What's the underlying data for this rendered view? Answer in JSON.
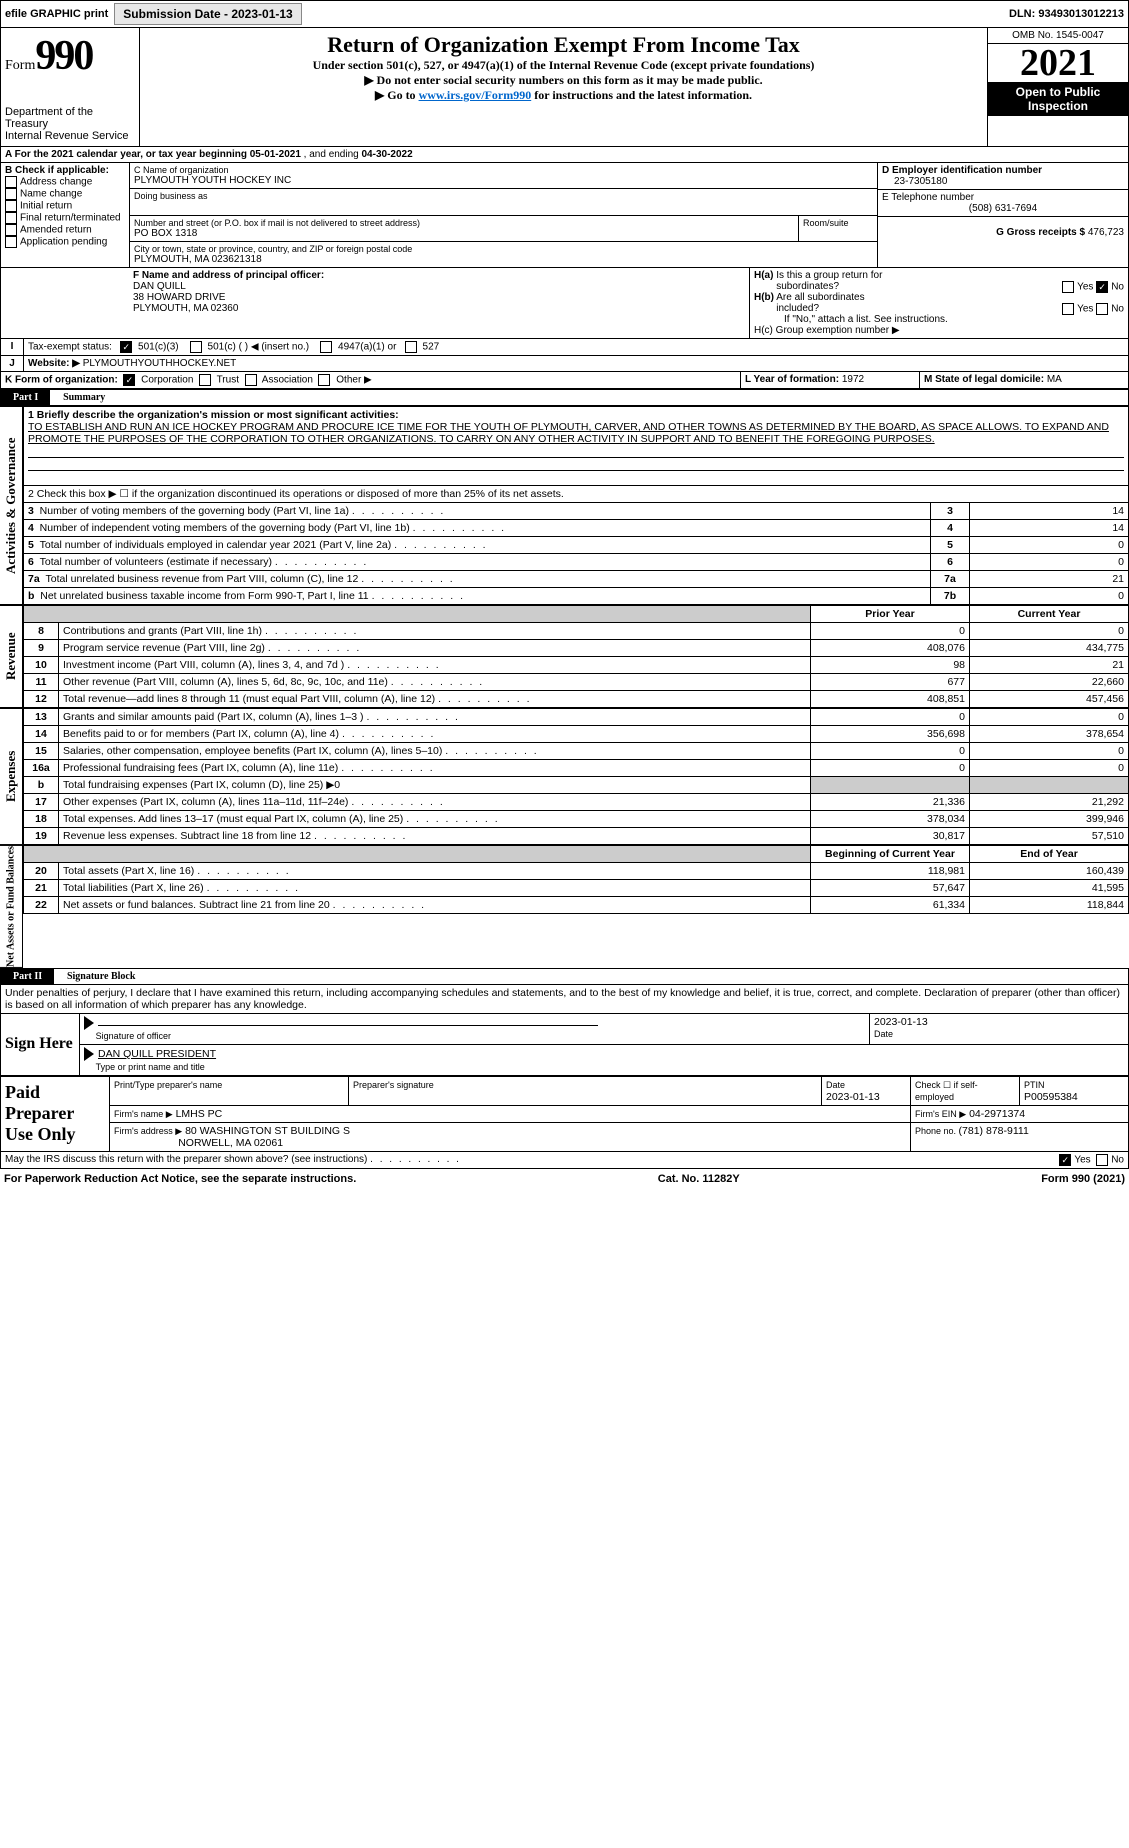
{
  "topbar": {
    "efile": "efile GRAPHIC print",
    "subdate_lbl": "Submission Date - ",
    "subdate": "2023-01-13",
    "dln_lbl": "DLN: ",
    "dln": "93493013012213"
  },
  "header": {
    "form": "Form",
    "form_num": "990",
    "omb": "OMB No. 1545-0047",
    "year": "2021",
    "title": "Return of Organization Exempt From Income Tax",
    "sub1": "Under section 501(c), 527, or 4947(a)(1) of the Internal Revenue Code (except private foundations)",
    "sub2": "▶ Do not enter social security numbers on this form as it may be made public.",
    "sub3_pre": "▶ Go to ",
    "sub3_link": "www.irs.gov/Form990",
    "sub3_post": " for instructions and the latest information.",
    "dept": "Department of the Treasury",
    "irs": "Internal Revenue Service",
    "open": "Open to Public Inspection"
  },
  "a": {
    "line": "A For the 2021 calendar year, or tax year beginning ",
    "beg": "05-01-2021",
    "mid": " , and ending ",
    "end": "04-30-2022"
  },
  "b": {
    "hdr": "B Check if applicable:",
    "items": [
      "Address change",
      "Name change",
      "Initial return",
      "Final return/terminated",
      "Amended return",
      "Application pending"
    ]
  },
  "c": {
    "lbl": "C Name of organization",
    "name": "PLYMOUTH YOUTH HOCKEY INC",
    "dba_lbl": "Doing business as",
    "dba": "",
    "addr_lbl": "Number and street (or P.O. box if mail is not delivered to street address)",
    "room_lbl": "Room/suite",
    "addr": "PO BOX 1318",
    "city_lbl": "City or town, state or province, country, and ZIP or foreign postal code",
    "city": "PLYMOUTH, MA  023621318"
  },
  "d": {
    "lbl": "D Employer identification number",
    "val": "23-7305180"
  },
  "e": {
    "lbl": "E Telephone number",
    "val": "(508) 631-7694"
  },
  "g": {
    "lbl": "G Gross receipts $ ",
    "val": "476,723"
  },
  "f": {
    "lbl": "F Name and address of principal officer:",
    "l1": "DAN QUILL",
    "l2": "38 HOWARD DRIVE",
    "l3": "PLYMOUTH, MA  02360"
  },
  "h": {
    "a_lbl": "H(a)  Is this a group return for subordinates?",
    "b_lbl": "H(b)  Are all subordinates included?",
    "note": "If \"No,\" attach a list. See instructions.",
    "c_lbl": "H(c)  Group exemption number ▶"
  },
  "i": {
    "lbl": "Tax-exempt status:",
    "o1": "501(c)(3)",
    "o2": "501(c) (   ) ◀ (insert no.)",
    "o3": "4947(a)(1) or",
    "o4": "527"
  },
  "j": {
    "lbl": "Website: ▶",
    "val": "PLYMOUTHYOUTHHOCKEY.NET"
  },
  "k": {
    "lbl": "K Form of organization:",
    "o1": "Corporation",
    "o2": "Trust",
    "o3": "Association",
    "o4": "Other ▶"
  },
  "l": {
    "lbl": "L Year of formation: ",
    "val": "1972"
  },
  "m": {
    "lbl": "M State of legal domicile: ",
    "val": "MA"
  },
  "p1": {
    "tag": "Part I",
    "title": "Summary",
    "side_a": "Activities & Governance",
    "side_r": "Revenue",
    "side_e": "Expenses",
    "side_n": "Net Assets or Fund Balances",
    "q1": "1  Briefly describe the organization's mission or most significant activities:",
    "mission": "TO ESTABLISH AND RUN AN ICE HOCKEY PROGRAM AND PROCURE ICE TIME FOR THE YOUTH OF PLYMOUTH, CARVER, AND OTHER TOWNS AS DETERMINED BY THE BOARD, AS SPACE ALLOWS. TO EXPAND AND PROMOTE THE PURPOSES OF THE CORPORATION TO OTHER ORGANIZATIONS. TO CARRY ON ANY OTHER ACTIVITY IN SUPPORT AND TO BENEFIT THE FOREGOING PURPOSES.",
    "q2": "2  Check this box ▶ ☐ if the organization discontinued its operations or disposed of more than 25% of its net assets.",
    "rows_ag": [
      {
        "n": "3",
        "t": "Number of voting members of the governing body (Part VI, line 1a)",
        "box": "3",
        "v": "14"
      },
      {
        "n": "4",
        "t": "Number of independent voting members of the governing body (Part VI, line 1b)",
        "box": "4",
        "v": "14"
      },
      {
        "n": "5",
        "t": "Total number of individuals employed in calendar year 2021 (Part V, line 2a)",
        "box": "5",
        "v": "0"
      },
      {
        "n": "6",
        "t": "Total number of volunteers (estimate if necessary)",
        "box": "6",
        "v": "0"
      },
      {
        "n": "7a",
        "t": "Total unrelated business revenue from Part VIII, column (C), line 12",
        "box": "7a",
        "v": "21"
      },
      {
        "n": "b",
        "t": "Net unrelated business taxable income from Form 990-T, Part I, line 11",
        "box": "7b",
        "v": "0"
      }
    ],
    "col_py": "Prior Year",
    "col_cy": "Current Year",
    "rows_rev": [
      {
        "n": "8",
        "t": "Contributions and grants (Part VIII, line 1h)",
        "py": "0",
        "cy": "0"
      },
      {
        "n": "9",
        "t": "Program service revenue (Part VIII, line 2g)",
        "py": "408,076",
        "cy": "434,775"
      },
      {
        "n": "10",
        "t": "Investment income (Part VIII, column (A), lines 3, 4, and 7d )",
        "py": "98",
        "cy": "21"
      },
      {
        "n": "11",
        "t": "Other revenue (Part VIII, column (A), lines 5, 6d, 8c, 9c, 10c, and 11e)",
        "py": "677",
        "cy": "22,660"
      },
      {
        "n": "12",
        "t": "Total revenue—add lines 8 through 11 (must equal Part VIII, column (A), line 12)",
        "py": "408,851",
        "cy": "457,456"
      }
    ],
    "rows_exp": [
      {
        "n": "13",
        "t": "Grants and similar amounts paid (Part IX, column (A), lines 1–3 )",
        "py": "0",
        "cy": "0"
      },
      {
        "n": "14",
        "t": "Benefits paid to or for members (Part IX, column (A), line 4)",
        "py": "356,698",
        "cy": "378,654"
      },
      {
        "n": "15",
        "t": "Salaries, other compensation, employee benefits (Part IX, column (A), lines 5–10)",
        "py": "0",
        "cy": "0"
      },
      {
        "n": "16a",
        "t": "Professional fundraising fees (Part IX, column (A), line 11e)",
        "py": "0",
        "cy": "0"
      },
      {
        "n": "b",
        "t": "Total fundraising expenses (Part IX, column (D), line 25) ▶0",
        "py": "",
        "cy": ""
      },
      {
        "n": "17",
        "t": "Other expenses (Part IX, column (A), lines 11a–11d, 11f–24e)",
        "py": "21,336",
        "cy": "21,292"
      },
      {
        "n": "18",
        "t": "Total expenses. Add lines 13–17 (must equal Part IX, column (A), line 25)",
        "py": "378,034",
        "cy": "399,946"
      },
      {
        "n": "19",
        "t": "Revenue less expenses. Subtract line 18 from line 12",
        "py": "30,817",
        "cy": "57,510"
      }
    ],
    "col_boy": "Beginning of Current Year",
    "col_eoy": "End of Year",
    "rows_net": [
      {
        "n": "20",
        "t": "Total assets (Part X, line 16)",
        "py": "118,981",
        "cy": "160,439"
      },
      {
        "n": "21",
        "t": "Total liabilities (Part X, line 26)",
        "py": "57,647",
        "cy": "41,595"
      },
      {
        "n": "22",
        "t": "Net assets or fund balances. Subtract line 21 from line 20",
        "py": "61,334",
        "cy": "118,844"
      }
    ]
  },
  "p2": {
    "tag": "Part II",
    "title": "Signature Block",
    "decl": "Under penalties of perjury, I declare that I have examined this return, including accompanying schedules and statements, and to the best of my knowledge and belief, it is true, correct, and complete. Declaration of preparer (other than officer) is based on all information of which preparer has any knowledge.",
    "sign_lbl": "Sign Here",
    "sig_of": "Signature of officer",
    "date_lbl": "Date",
    "date": "2023-01-13",
    "typed": "DAN QUILL  PRESIDENT",
    "typed_lbl": "Type or print name and title",
    "paid_lbl": "Paid Preparer Use Only",
    "pp_name_lbl": "Print/Type preparer's name",
    "pp_sig_lbl": "Preparer's signature",
    "pp_date_lbl": "Date",
    "pp_date": "2023-01-13",
    "pp_check_lbl": "Check ☐ if self-employed",
    "ptin_lbl": "PTIN",
    "ptin": "P00595384",
    "firm_name_lbl": "Firm's name  ▶",
    "firm_name": "LMHS PC",
    "firm_ein_lbl": "Firm's EIN ▶",
    "firm_ein": "04-2971374",
    "firm_addr_lbl": "Firm's address ▶",
    "firm_addr": "80 WASHINGTON ST BUILDING S",
    "firm_city": "NORWELL, MA  02061",
    "phone_lbl": "Phone no. ",
    "phone": "(781) 878-9111",
    "discuss": "May the IRS discuss this return with the preparer shown above? (see instructions)"
  },
  "footer": {
    "l": "For Paperwork Reduction Act Notice, see the separate instructions.",
    "m": "Cat. No. 11282Y",
    "r": "Form 990 (2021)"
  }
}
